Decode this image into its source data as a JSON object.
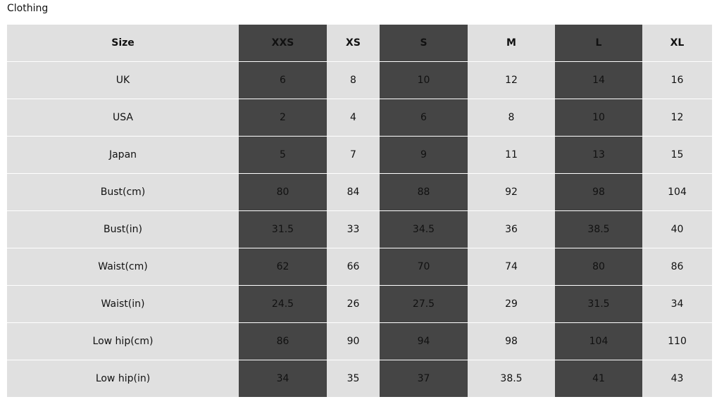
{
  "title": "Clothing",
  "header": [
    "Size",
    "XXS",
    "XS",
    "S",
    "M",
    "L",
    "XL"
  ],
  "rows": [
    [
      "UK",
      "6",
      "8",
      "10",
      "12",
      "14",
      "16"
    ],
    [
      "USA",
      "2",
      "4",
      "6",
      "8",
      "10",
      "12"
    ],
    [
      "Japan",
      "5",
      "7",
      "9",
      "11",
      "13",
      "15"
    ],
    [
      "Bust(cm)",
      "80",
      "84",
      "88",
      "92",
      "98",
      "104"
    ],
    [
      "Bust(in)",
      "31.5",
      "33",
      "34.5",
      "36",
      "38.5",
      "40"
    ],
    [
      "Waist(cm)",
      "62",
      "66",
      "70",
      "74",
      "80",
      "86"
    ],
    [
      "Waist(in)",
      "24.5",
      "26",
      "27.5",
      "29",
      "31.5",
      "34"
    ],
    [
      "Low hip(cm)",
      "86",
      "90",
      "94",
      "98",
      "104",
      "110"
    ],
    [
      "Low hip(in)",
      "34",
      "35",
      "37",
      "38.5",
      "41",
      "43"
    ]
  ],
  "colors": {
    "light_cell": "#e0e0e0",
    "dark_cell": "#454545"
  }
}
